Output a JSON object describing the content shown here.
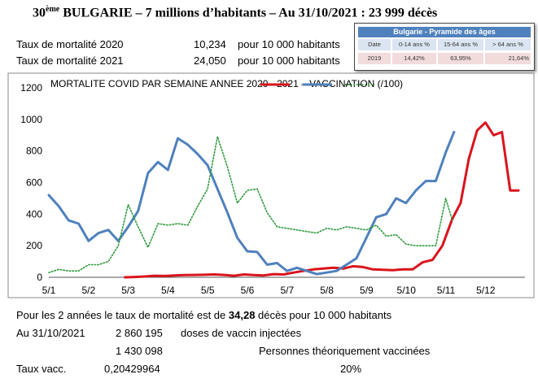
{
  "header": {
    "title_prefix": "30",
    "title_sup": "ème",
    "title_main": " BULGARIE – 7 millions d’habitants – Au 31/10/2021 : 23 999 décès"
  },
  "stats": {
    "row1_label": "Taux de mortalité 2020",
    "row1_value": "10,234",
    "row1_unit": "pour 10 000 habitants",
    "row2_label": "Taux de mortalité 2021",
    "row2_value": "24,050",
    "row2_unit": "pour 10 000 habitants"
  },
  "pyramid": {
    "title": "Bulgarie - Pyramide des âges",
    "headers": [
      "Date",
      "0-14 ans %",
      "15-64 ans %",
      "> 64 ans %"
    ],
    "values": [
      "2019",
      "14,42%",
      "63,95%",
      "21,64%"
    ]
  },
  "chart_data": {
    "type": "line",
    "title": "MORTALITE COVID PAR SEMAINE ANNEE 2020 - 2021 – VACCINATION (/100)",
    "ylim": [
      0,
      1200
    ],
    "yticks": [
      "0",
      "200",
      "400",
      "600",
      "800",
      "1000",
      "1200"
    ],
    "x_ticks": [
      "5/1",
      "5/2",
      "5/3",
      "5/4",
      "5/5",
      "5/6",
      "5/7",
      "5/8",
      "5/9",
      "5/10",
      "5/11",
      "5/12"
    ],
    "grid": false,
    "series": [
      {
        "key": "2020",
        "color": "#d9141c",
        "style": "solid",
        "x": [
          3.3,
          3.6,
          3.9,
          4.2,
          4.5,
          4.8,
          5.1,
          5.4,
          5.7,
          6.0,
          6.3,
          6.6,
          6.9,
          7.2,
          7.5,
          7.8,
          8.1,
          8.4,
          8.7,
          9.0,
          9.3,
          9.6,
          9.9,
          10.2,
          10.5,
          10.8,
          11.1,
          11.4,
          11.7,
          12.0,
          12.3,
          12.6,
          12.9,
          13.2,
          13.45
        ],
        "values": [
          0,
          2,
          5,
          10,
          8,
          12,
          14,
          15,
          16,
          18,
          15,
          10,
          18,
          14,
          12,
          20,
          18,
          30,
          40,
          50,
          55,
          60,
          55,
          70,
          65,
          50,
          48,
          45,
          50,
          50,
          95,
          110,
          200,
          370,
          470
        ]
      },
      {
        "key": "2020b",
        "color": "#d9141c",
        "style": "solid",
        "x": [
          13.45,
          13.7,
          13.95,
          14.2,
          14.45,
          14.7,
          14.95,
          15.2
        ],
        "values": [
          470,
          750,
          930,
          980,
          900,
          920,
          550,
          550
        ]
      },
      {
        "key": "2021",
        "color": "#4f81bd",
        "style": "solid",
        "x": [
          1.0,
          1.3,
          1.6,
          1.9,
          2.2,
          2.5,
          2.8,
          3.1,
          3.4,
          3.7,
          4.0,
          4.3,
          4.6,
          4.9,
          5.2,
          5.5,
          5.8,
          6.1,
          6.4,
          6.7,
          7.0,
          7.3,
          7.6,
          7.9,
          8.2,
          8.5,
          8.8,
          9.1,
          9.4,
          9.7,
          10.0,
          10.3,
          10.6,
          10.9,
          11.2
        ],
        "values": [
          520,
          450,
          360,
          340,
          230,
          280,
          300,
          230,
          320,
          420,
          660,
          730,
          680,
          880,
          840,
          780,
          710,
          560,
          410,
          250,
          165,
          160,
          80,
          90,
          40,
          60,
          40,
          20,
          30,
          40,
          80,
          120,
          250,
          380,
          400
        ]
      },
      {
        "key": "2021b",
        "color": "#4f81bd",
        "style": "solid",
        "x": [
          11.2,
          11.5,
          11.8,
          12.1,
          12.4,
          12.7,
          13.0,
          13.25
        ],
        "values": [
          400,
          500,
          470,
          550,
          610,
          610,
          790,
          920
        ]
      },
      {
        "key": "vacc",
        "color": "#2e9b3c",
        "style": "dotted",
        "x": [
          1.0,
          1.3,
          1.6,
          1.9,
          2.2,
          2.5,
          2.8,
          3.1,
          3.4,
          3.7,
          4.0,
          4.3,
          4.6,
          4.9,
          5.2,
          5.5,
          5.8,
          6.1,
          6.4,
          6.7,
          7.0,
          7.3,
          7.6,
          7.9,
          8.2,
          8.5,
          8.8,
          9.1,
          9.4,
          9.7,
          10.0,
          10.3,
          10.6,
          10.9,
          11.2,
          11.5,
          11.8,
          12.1,
          12.4,
          12.7,
          13.0,
          13.2
        ],
        "values": [
          30,
          50,
          40,
          40,
          80,
          80,
          100,
          200,
          460,
          320,
          190,
          340,
          330,
          340,
          330,
          450,
          560,
          890,
          700,
          470,
          550,
          560,
          410,
          320,
          310,
          300,
          290,
          280,
          310,
          300,
          320,
          310,
          300,
          330,
          260,
          270,
          210,
          200,
          200,
          200,
          500,
          360
        ]
      }
    ],
    "legend": [
      {
        "color": "#d9141c",
        "style": "solid"
      },
      {
        "color": "#4f81bd",
        "style": "solid"
      },
      {
        "color": "#2e9b3c",
        "style": "dotted"
      }
    ]
  },
  "footer": {
    "line1_pre": "Pour les 2 années le taux de mortalité est de ",
    "line1_bold": "34,28",
    "line1_post": " décès pour 10 000 habitants",
    "line2_label": "Au 31/10/2021",
    "line2_value": "2 860 195",
    "line2_text": "doses de vaccin injectées",
    "line3_value": "1 430 098",
    "line3_text": "Personnes théoriquement vaccinées",
    "line4_label": "Taux vacc.",
    "line4_value": "0,20429964",
    "line4_pct": "20%"
  }
}
